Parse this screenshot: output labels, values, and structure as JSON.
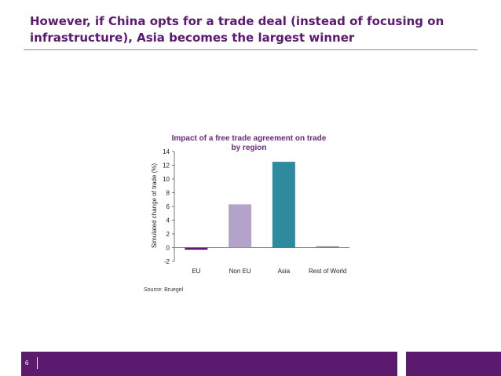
{
  "slide": {
    "title_line1": "However, if China opts for a trade deal (instead of focusing on",
    "title_line2": "infrastructure), Asia becomes the largest winner",
    "page_number": "6",
    "source": "Source: Bruegel"
  },
  "colors": {
    "brand_purple": "#5b1a6e",
    "title_purple": "#5b1a6e",
    "chart_title": "#6b2a82"
  },
  "chart_data": {
    "type": "bar",
    "title_line1": "Impact of a free trade agreement on trade",
    "title_line2": "by region",
    "xlabel": "",
    "ylabel": "Simulated change of trade (%)",
    "ylim": [
      -2,
      14
    ],
    "yticks": [
      -2,
      0,
      2,
      4,
      6,
      8,
      10,
      12,
      14
    ],
    "grid": false,
    "legend": "none",
    "categories": [
      "EU",
      "Non EU",
      "Asia",
      "Rest of World"
    ],
    "values": [
      -0.3,
      6.3,
      12.5,
      0.2
    ],
    "colors": [
      "#5b1a6e",
      "#b3a2c9",
      "#2e8a9e",
      "#8a8a8a"
    ]
  }
}
